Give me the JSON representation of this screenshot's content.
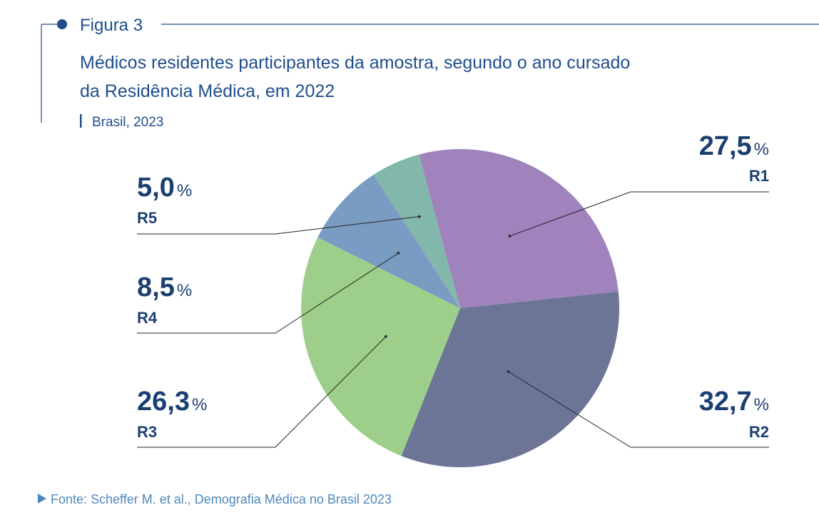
{
  "figure": {
    "label": "Figura 3",
    "title_line1": "Médicos residentes participantes da amostra, segundo o ano cursado",
    "title_line2": "da Residência Médica, em 2022",
    "subtitle": "Brasil, 2023",
    "source": "Fonte: Scheffer M. et al., Demografia Médica no Brasil 2023",
    "colors": {
      "accent": "#1f4e8c",
      "source": "#4f88bd",
      "label": "#1c3f72",
      "leader": "#222222"
    }
  },
  "chart_data": {
    "type": "pie",
    "title": "Médicos residentes participantes da amostra, segundo o ano cursado da Residência Médica, em 2022",
    "unit_symbol": "%",
    "slices": [
      {
        "name": "R1",
        "value": 27.5,
        "display": "27,5",
        "color": "#a083bd"
      },
      {
        "name": "R2",
        "value": 32.7,
        "display": "32,7",
        "color": "#6d7597"
      },
      {
        "name": "R3",
        "value": 26.3,
        "display": "26,3",
        "color": "#9dcf8a"
      },
      {
        "name": "R4",
        "value": 8.5,
        "display": "8,5",
        "color": "#7a9cc3"
      },
      {
        "name": "R5",
        "value": 5.0,
        "display": "5,0",
        "color": "#82b7ab"
      }
    ]
  }
}
